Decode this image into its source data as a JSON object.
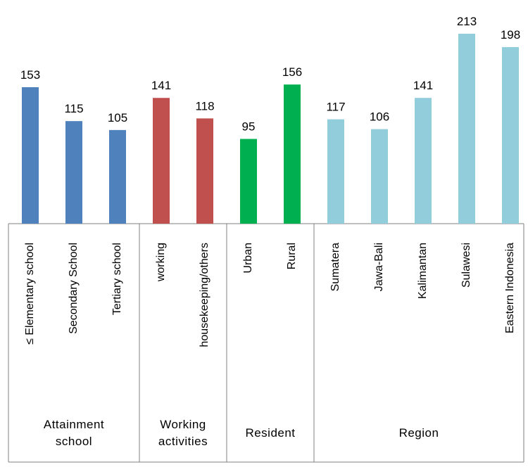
{
  "chart_data": {
    "type": "bar",
    "groups": [
      {
        "name": "Attainment school",
        "color": "#4f81bd",
        "categories": [
          "≤ Elementary school",
          "Secondary School",
          "Tertiary school"
        ],
        "values": [
          153,
          115,
          105
        ]
      },
      {
        "name": "Working activities",
        "color": "#c0504d",
        "categories": [
          "working",
          "housekeeping/others"
        ],
        "values": [
          141,
          118
        ]
      },
      {
        "name": "Resident",
        "color": "#00b050",
        "categories": [
          "Urban",
          "Rural"
        ],
        "values": [
          95,
          156
        ]
      },
      {
        "name": "Region",
        "color": "#92cddc",
        "categories": [
          "Sumatera",
          "Jawa-Bali",
          "Kalimantan",
          "Sulawesi",
          "Eastern Indonesia"
        ],
        "values": [
          117,
          106,
          141,
          213,
          198
        ]
      }
    ]
  }
}
